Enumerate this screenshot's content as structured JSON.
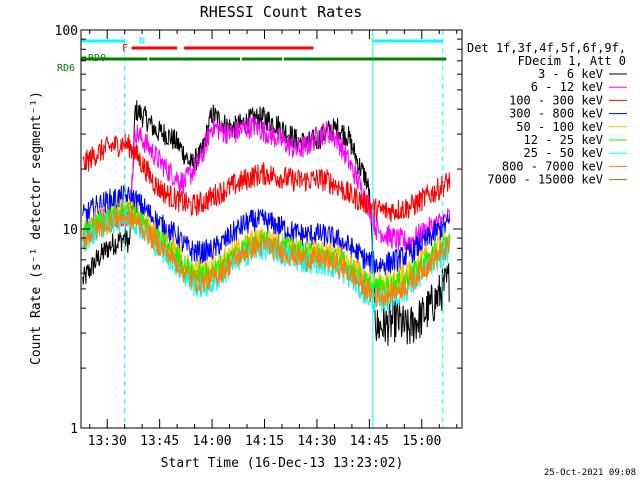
{
  "chart_data": {
    "type": "line",
    "title": "RHESSI Count Rates",
    "xlabel": "Start Time (16-Dec-13 13:23:02)",
    "ylabel": "Count Rate (s⁻¹ detector segment⁻¹)",
    "y_scale": "log",
    "ylim": [
      1,
      100
    ],
    "y_ticks": [
      {
        "value": 1,
        "label": "1"
      },
      {
        "value": 10,
        "label": "10"
      },
      {
        "value": 100,
        "label": "100"
      }
    ],
    "xlim_minutes": [
      -7.5,
      101.5
    ],
    "x_ticks": [
      {
        "minutes": 0,
        "label": "13:30"
      },
      {
        "minutes": 15,
        "label": "13:45"
      },
      {
        "minutes": 30,
        "label": "14:00"
      },
      {
        "minutes": 45,
        "label": "14:15"
      },
      {
        "minutes": 60,
        "label": "14:30"
      },
      {
        "minutes": 75,
        "label": "14:45"
      },
      {
        "minutes": 90,
        "label": "15:00"
      }
    ],
    "grid": false,
    "legend_position": "top-right",
    "legend_header": [
      "Det 1f,3f,4f,5f,6f,9f,",
      "FDecim 1, Att 0"
    ],
    "series": [
      {
        "name": "3 - 6 keV",
        "color": "#000000",
        "x": [
          -7,
          -3,
          1,
          5,
          6.5,
          8,
          11,
          14,
          17,
          20,
          22,
          24,
          27,
          30,
          33,
          36,
          39,
          42,
          45,
          48,
          51,
          54,
          57,
          60,
          63,
          66,
          69,
          72,
          74,
          75,
          77,
          80,
          83,
          86,
          88,
          90,
          92,
          94,
          96,
          98
        ],
        "y": [
          5.5,
          7,
          8.3,
          9,
          8.5,
          40,
          36,
          31,
          30,
          27,
          24,
          21,
          24,
          38,
          34,
          32,
          34,
          36,
          36,
          34,
          31,
          28,
          27,
          28,
          31,
          32,
          29,
          21,
          18,
          15,
          3.2,
          3.3,
          3.5,
          3.1,
          3.4,
          3.6,
          4,
          4.4,
          5,
          5.6
        ]
      },
      {
        "name": "6 - 12 keV",
        "color": "#ff00ff",
        "x": [
          -7,
          -3,
          1,
          5,
          6.5,
          8,
          11,
          14,
          17,
          20,
          22,
          24,
          27,
          30,
          33,
          36,
          39,
          42,
          45,
          48,
          51,
          54,
          57,
          60,
          63,
          66,
          69,
          72,
          74,
          75,
          77,
          80,
          83,
          86,
          88,
          90,
          92,
          94,
          96,
          98
        ],
        "y": [
          10,
          11,
          11.5,
          11.8,
          12,
          31,
          27,
          23,
          20,
          18,
          17,
          19,
          23,
          33,
          31,
          30,
          32,
          33,
          31,
          29,
          27,
          25,
          26,
          29,
          31,
          28,
          22,
          17,
          14,
          13,
          10,
          9.3,
          8.8,
          8.6,
          9,
          9.5,
          10,
          10.5,
          11,
          11.5
        ]
      },
      {
        "name": "100 - 300 keV",
        "color": "#ff0000",
        "x": [
          -7,
          -3,
          1,
          5,
          6.5,
          8,
          11,
          14,
          17,
          20,
          22,
          24,
          27,
          30,
          33,
          36,
          39,
          42,
          45,
          48,
          51,
          54,
          57,
          60,
          63,
          66,
          69,
          72,
          74,
          75,
          77,
          80,
          83,
          86,
          88,
          90,
          92,
          94,
          96,
          98
        ],
        "y": [
          21,
          24,
          26,
          27,
          26,
          24,
          20,
          16.5,
          15,
          14,
          13.6,
          13,
          13.5,
          14.5,
          15.5,
          16.5,
          17.5,
          18.5,
          19,
          18.5,
          18,
          17.5,
          17.5,
          17.8,
          17.5,
          16.5,
          15,
          14,
          13.5,
          13.2,
          12.5,
          12.3,
          12.5,
          12.8,
          13.3,
          14,
          14.8,
          15.5,
          16.5,
          17.5
        ]
      },
      {
        "name": "300 - 800 keV",
        "color": "#0000ff",
        "x": [
          -7,
          -3,
          1,
          5,
          6.5,
          8,
          11,
          14,
          17,
          20,
          22,
          24,
          27,
          30,
          33,
          36,
          39,
          42,
          45,
          48,
          51,
          54,
          57,
          60,
          63,
          66,
          69,
          72,
          74,
          75,
          77,
          80,
          83,
          86,
          88,
          90,
          92,
          94,
          96,
          98
        ],
        "y": [
          11.5,
          13,
          14,
          14.5,
          14.3,
          14,
          12.5,
          11,
          10,
          9.2,
          8.3,
          7.8,
          7.6,
          7.8,
          8.5,
          9.5,
          10.5,
          11,
          11,
          10.5,
          10,
          9.5,
          9.3,
          9.4,
          9.2,
          8.8,
          8.2,
          7.5,
          7,
          6.8,
          6.6,
          6.7,
          7,
          7.4,
          7.9,
          8.4,
          9,
          9.6,
          10.2,
          10.8
        ]
      },
      {
        "name": "50 - 100 keV",
        "color": "#ffc000",
        "x": [
          -7,
          -3,
          1,
          5,
          6.5,
          8,
          11,
          14,
          17,
          20,
          22,
          24,
          27,
          30,
          33,
          36,
          39,
          42,
          45,
          48,
          51,
          54,
          57,
          60,
          63,
          66,
          69,
          72,
          74,
          75,
          77,
          80,
          83,
          86,
          88,
          90,
          92,
          94,
          96,
          98
        ],
        "y": [
          9.8,
          11,
          12,
          12.5,
          12.3,
          12,
          10.8,
          9.5,
          8.5,
          7.6,
          6.9,
          6.3,
          6.1,
          6.3,
          6.9,
          7.6,
          8.3,
          8.8,
          9,
          8.7,
          8.3,
          8,
          7.8,
          7.8,
          7.6,
          7.3,
          6.8,
          6.1,
          5.7,
          5.5,
          5.3,
          5.4,
          5.6,
          6,
          6.4,
          6.9,
          7.4,
          7.9,
          8.4,
          8.9
        ]
      },
      {
        "name": "12 - 25 keV",
        "color": "#00ff00",
        "x": [
          -7,
          -3,
          1,
          5,
          6.5,
          8,
          11,
          14,
          17,
          20,
          22,
          24,
          27,
          30,
          33,
          36,
          39,
          42,
          45,
          48,
          51,
          54,
          57,
          60,
          63,
          66,
          69,
          72,
          74,
          75,
          77,
          80,
          83,
          86,
          88,
          90,
          92,
          94,
          96,
          98
        ],
        "y": [
          9.3,
          10.5,
          11.5,
          12,
          11.8,
          11.5,
          10.3,
          9,
          8.1,
          7.2,
          6.6,
          6,
          5.8,
          6,
          6.6,
          7.3,
          8,
          8.5,
          8.7,
          8.4,
          8,
          7.7,
          7.5,
          7.5,
          7.3,
          7,
          6.5,
          5.8,
          5.4,
          5.2,
          5,
          5.1,
          5.3,
          5.7,
          6.1,
          6.6,
          7.1,
          7.6,
          8.1,
          8.6
        ]
      },
      {
        "name": "25 - 50 keV",
        "color": "#00ffff",
        "x": [
          -7,
          -3,
          1,
          5,
          6.5,
          8,
          11,
          14,
          17,
          20,
          22,
          24,
          27,
          30,
          33,
          36,
          39,
          42,
          45,
          48,
          51,
          54,
          57,
          60,
          63,
          66,
          69,
          72,
          74,
          75,
          77,
          80,
          83,
          86,
          88,
          90,
          92,
          94,
          96,
          98
        ],
        "y": [
          8.6,
          9.8,
          10.8,
          11.3,
          11.1,
          10.8,
          9.6,
          8.3,
          7.4,
          6.5,
          5.9,
          5.3,
          5.1,
          5.3,
          5.9,
          6.6,
          7.3,
          7.8,
          8,
          7.7,
          7.3,
          7,
          6.8,
          6.8,
          6.6,
          6.3,
          5.8,
          5.1,
          4.7,
          4.5,
          4.3,
          4.4,
          4.6,
          5,
          5.4,
          5.9,
          6.4,
          6.9,
          7.4,
          7.9
        ]
      },
      {
        "name": "800 - 7000 keV",
        "color": "#ff8000",
        "x": [
          -7,
          -3,
          1,
          5,
          6.5,
          8,
          11,
          14,
          17,
          20,
          22,
          24,
          27,
          30,
          33,
          36,
          39,
          42,
          45,
          48,
          51,
          54,
          57,
          60,
          63,
          66,
          69,
          72,
          74,
          75,
          77,
          80,
          83,
          86,
          88,
          90,
          92,
          94,
          96,
          98
        ],
        "y": [
          8.8,
          10,
          11,
          11.5,
          11.3,
          11,
          9.8,
          8.6,
          7.6,
          6.8,
          6.1,
          5.6,
          5.4,
          5.6,
          6.2,
          6.9,
          7.6,
          8.1,
          8.3,
          8,
          7.6,
          7.3,
          7.1,
          7.1,
          6.9,
          6.6,
          6.1,
          5.4,
          5,
          4.8,
          4.6,
          4.7,
          4.9,
          5.3,
          5.7,
          6.2,
          6.7,
          7.2,
          7.7,
          8.2
        ]
      },
      {
        "name": "7000 - 15000 keV",
        "color": "#808000",
        "x": [],
        "y": []
      }
    ],
    "annotations": {
      "attenuator_flag": {
        "label": "N",
        "color": "#00ffff",
        "segments": [
          [
            -7.5,
            5
          ],
          [
            76,
            96
          ]
        ]
      },
      "flare_flag": {
        "label": "F",
        "color": "#ff0000",
        "segments": [
          [
            7,
            20
          ],
          [
            22,
            59
          ]
        ]
      },
      "decimation_flag": {
        "label": "RD0",
        "color": "#008000",
        "segments": [
          [
            -7.5,
            11.5
          ],
          [
            12,
            38
          ],
          [
            38.5,
            50
          ],
          [
            50.5,
            97
          ]
        ]
      },
      "decimation_flag_2": {
        "label": "RD6",
        "color": "#008000",
        "segments": []
      },
      "solid_vertical_markers": [
        -7.5,
        76
      ],
      "dashed_vertical_markers": [
        5,
        96
      ]
    },
    "footer": "25-Oct-2021 09:08"
  }
}
